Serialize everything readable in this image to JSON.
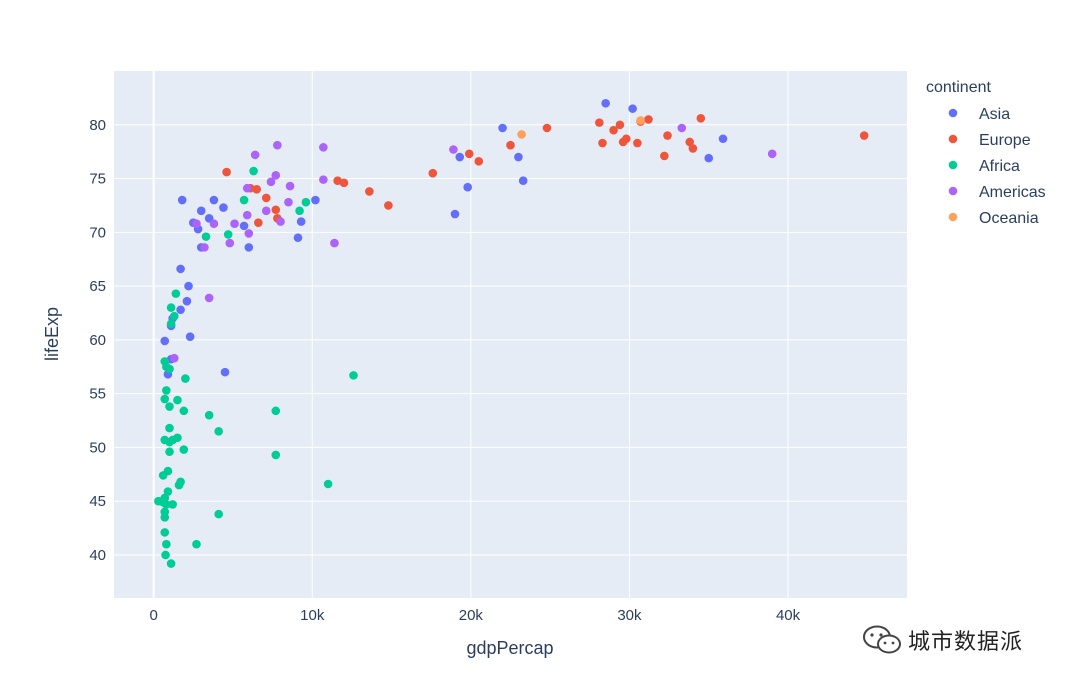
{
  "chart_data": {
    "type": "scatter",
    "xlabel": "gdpPercap",
    "ylabel": "lifeExp",
    "xlim": [
      -2500,
      47500
    ],
    "ylim": [
      36,
      85
    ],
    "x_ticks": [
      0,
      10000,
      20000,
      30000,
      40000
    ],
    "x_tick_labels": [
      "0",
      "10k",
      "20k",
      "30k",
      "40k"
    ],
    "y_ticks": [
      40,
      45,
      50,
      55,
      60,
      65,
      70,
      75,
      80
    ],
    "y_tick_labels": [
      "40",
      "45",
      "50",
      "55",
      "60",
      "65",
      "70",
      "75",
      "80"
    ],
    "grid": true,
    "legend": {
      "title": "continent",
      "placement": "right"
    },
    "series": [
      {
        "name": "Asia",
        "color": "#636efa",
        "points": [
          [
            28500,
            82
          ],
          [
            30200,
            81.5
          ],
          [
            22000,
            79.7
          ],
          [
            23000,
            77
          ],
          [
            35900,
            78.7
          ],
          [
            35000,
            76.9
          ],
          [
            19300,
            77
          ],
          [
            19800,
            74.2
          ],
          [
            23300,
            74.8
          ],
          [
            19000,
            71.7
          ],
          [
            10200,
            73
          ],
          [
            9300,
            71
          ],
          [
            9100,
            69.5
          ],
          [
            4400,
            72.3
          ],
          [
            3800,
            73
          ],
          [
            3500,
            71.3
          ],
          [
            3000,
            72
          ],
          [
            2500,
            70.9
          ],
          [
            2800,
            70.3
          ],
          [
            3000,
            68.6
          ],
          [
            6000,
            68.6
          ],
          [
            1800,
            73
          ],
          [
            1700,
            66.6
          ],
          [
            2200,
            65
          ],
          [
            2100,
            63.6
          ],
          [
            1700,
            62.8
          ],
          [
            1200,
            62
          ],
          [
            1100,
            61.3
          ],
          [
            2300,
            60.3
          ],
          [
            700,
            59.9
          ],
          [
            4500,
            57
          ],
          [
            1100,
            58.2
          ],
          [
            900,
            56.8
          ],
          [
            5700,
            70.6
          ]
        ]
      },
      {
        "name": "Europe",
        "color": "#ef553b",
        "points": [
          [
            44800,
            79
          ],
          [
            34500,
            80.6
          ],
          [
            33800,
            78.4
          ],
          [
            34000,
            77.8
          ],
          [
            31200,
            80.5
          ],
          [
            30700,
            80.3
          ],
          [
            30500,
            78.3
          ],
          [
            29800,
            78.7
          ],
          [
            29400,
            80
          ],
          [
            29000,
            79.5
          ],
          [
            28100,
            80.2
          ],
          [
            28300,
            78.3
          ],
          [
            29600,
            78.4
          ],
          [
            32200,
            77.1
          ],
          [
            32400,
            79
          ],
          [
            24800,
            79.7
          ],
          [
            22500,
            78.1
          ],
          [
            20500,
            76.6
          ],
          [
            19900,
            77.3
          ],
          [
            17600,
            75.5
          ],
          [
            14800,
            72.5
          ],
          [
            13600,
            73.8
          ],
          [
            12000,
            74.6
          ],
          [
            11600,
            74.8
          ],
          [
            7700,
            72.1
          ],
          [
            7800,
            71.3
          ],
          [
            7100,
            73.2
          ],
          [
            6500,
            74
          ],
          [
            6600,
            70.9
          ],
          [
            6100,
            74.1
          ],
          [
            4600,
            75.6
          ]
        ]
      },
      {
        "name": "Africa",
        "color": "#00cc96",
        "points": [
          [
            12600,
            56.7
          ],
          [
            11000,
            46.6
          ],
          [
            9600,
            72.8
          ],
          [
            9200,
            72
          ],
          [
            7700,
            53.4
          ],
          [
            7700,
            49.3
          ],
          [
            6300,
            75.7
          ],
          [
            5700,
            73
          ],
          [
            4700,
            69.8
          ],
          [
            4100,
            51.5
          ],
          [
            4100,
            43.8
          ],
          [
            3500,
            53
          ],
          [
            3300,
            69.6
          ],
          [
            2700,
            41
          ],
          [
            2000,
            56.4
          ],
          [
            1900,
            53.4
          ],
          [
            1900,
            49.8
          ],
          [
            1700,
            46.8
          ],
          [
            1600,
            46.5
          ],
          [
            1500,
            54.4
          ],
          [
            1500,
            50.9
          ],
          [
            1400,
            64.3
          ],
          [
            1300,
            62.2
          ],
          [
            1200,
            50.7
          ],
          [
            1200,
            44.7
          ],
          [
            1100,
            63
          ],
          [
            1100,
            61.5
          ],
          [
            1000,
            57.3
          ],
          [
            1000,
            53.8
          ],
          [
            1000,
            51.8
          ],
          [
            1000,
            50.5
          ],
          [
            1000,
            49.6
          ],
          [
            900,
            47.8
          ],
          [
            900,
            45.9
          ],
          [
            800,
            55.3
          ],
          [
            800,
            57.5
          ],
          [
            800,
            44.7
          ],
          [
            700,
            54.5
          ],
          [
            700,
            58
          ],
          [
            700,
            50.7
          ],
          [
            700,
            45.3
          ],
          [
            700,
            44
          ],
          [
            700,
            43.5
          ],
          [
            700,
            42.1
          ],
          [
            600,
            47.4
          ],
          [
            300,
            45
          ],
          [
            600,
            44.9
          ],
          [
            800,
            41
          ],
          [
            750,
            40
          ],
          [
            1100,
            39.2
          ]
        ]
      },
      {
        "name": "Americas",
        "color": "#ab63fa",
        "points": [
          [
            39000,
            77.3
          ],
          [
            33300,
            79.7
          ],
          [
            18900,
            77.7
          ],
          [
            10700,
            77.9
          ],
          [
            10700,
            74.9
          ],
          [
            11400,
            69
          ],
          [
            8600,
            74.3
          ],
          [
            8500,
            72.8
          ],
          [
            7800,
            78.1
          ],
          [
            7700,
            75.3
          ],
          [
            7400,
            74.7
          ],
          [
            7100,
            72
          ],
          [
            6400,
            77.2
          ],
          [
            5900,
            74.1
          ],
          [
            5900,
            71.6
          ],
          [
            6000,
            69.9
          ],
          [
            5100,
            70.8
          ],
          [
            4800,
            69
          ],
          [
            3800,
            70.8
          ],
          [
            3200,
            68.6
          ],
          [
            2700,
            70.8
          ],
          [
            3500,
            63.9
          ],
          [
            8000,
            71
          ],
          [
            1300,
            58.3
          ]
        ]
      },
      {
        "name": "Oceania",
        "color": "#ffa15a",
        "points": [
          [
            23200,
            79.1
          ],
          [
            30700,
            80.4
          ]
        ]
      }
    ]
  },
  "watermark": {
    "text": "城市数据派"
  }
}
